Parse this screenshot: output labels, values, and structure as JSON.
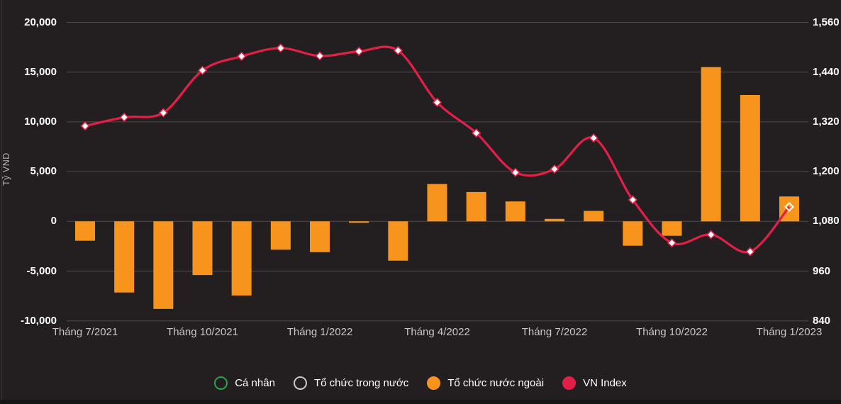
{
  "axes": {
    "y_left_title": "Tỷ VND",
    "left_ticks": [
      "20,000",
      "15,000",
      "10,000",
      "5,000",
      "0",
      "-5,000",
      "-10,000"
    ],
    "right_ticks": [
      "1,560",
      "1,440",
      "1,320",
      "1,200",
      "1,080",
      "960",
      "840"
    ],
    "x_ticks": [
      "Tháng 7/2021",
      "Tháng 10/2021",
      "Tháng 1/2022",
      "Tháng 4/2022",
      "Tháng 7/2022",
      "Tháng 10/2022",
      "Tháng 1/2023"
    ]
  },
  "legend": [
    {
      "label": "Cá nhân",
      "slug": "ca-nhan",
      "color": "#2fa14a",
      "filled": false
    },
    {
      "label": "Tổ chức trong nước",
      "slug": "to-chuc-trong-nuoc",
      "color": "#c9c9c9",
      "filled": false
    },
    {
      "label": "Tổ chức nước ngoài",
      "slug": "to-chuc-nuoc-ngoai",
      "color": "#f7941e",
      "filled": true
    },
    {
      "label": "VN Index",
      "slug": "vn-index",
      "color": "#e41f47",
      "filled": true
    }
  ],
  "colors": {
    "background": "#231f20",
    "gridline": "#4f4c4d",
    "bar_orange": "#f7941e",
    "line_red": "#e41f47",
    "marker_fill": "#ffffff",
    "axis_text": "#ffffff",
    "x_axis_text": "#c8c6c7"
  },
  "chart_data": {
    "type": "combo",
    "title": "",
    "grid": "horizontal",
    "legend_position": "bottom",
    "categories": [
      "Tháng 7/2021",
      "Tháng 8/2021",
      "Tháng 9/2021",
      "Tháng 10/2021",
      "Tháng 11/2021",
      "Tháng 12/2021",
      "Tháng 1/2022",
      "Tháng 2/2022",
      "Tháng 3/2022",
      "Tháng 4/2022",
      "Tháng 5/2022",
      "Tháng 6/2022",
      "Tháng 7/2022",
      "Tháng 8/2022",
      "Tháng 9/2022",
      "Tháng 10/2022",
      "Tháng 11/2022",
      "Tháng 12/2022",
      "Tháng 1/2023"
    ],
    "left_axis": {
      "label": "Tỷ VND",
      "min": -10000,
      "max": 20000,
      "tick_interval": 5000
    },
    "right_axis": {
      "label": "VN Index",
      "min": 840,
      "max": 1560,
      "tick_interval": 120
    },
    "series": [
      {
        "name": "Cá nhân",
        "type": "column",
        "axis": "left",
        "color": "#2fa14a",
        "visible": false,
        "values": []
      },
      {
        "name": "Tổ chức trong nước",
        "type": "column",
        "axis": "left",
        "color": "#c9c9c9",
        "visible": false,
        "values": []
      },
      {
        "name": "Tổ chức nước ngoài",
        "type": "column",
        "axis": "left",
        "color": "#f7941e",
        "visible": true,
        "values": [
          -1950,
          -7150,
          -8800,
          -5400,
          -7450,
          -2850,
          -3100,
          -150,
          -3950,
          3750,
          2950,
          2000,
          250,
          1050,
          -2450,
          -1450,
          15500,
          12700,
          2500
        ]
      },
      {
        "name": "VN Index",
        "type": "spline",
        "axis": "right",
        "color": "#e41f47",
        "visible": true,
        "values": [
          1310,
          1331,
          1342,
          1444,
          1478,
          1498,
          1479,
          1490,
          1492,
          1367,
          1293,
          1198,
          1206,
          1281,
          1132,
          1028,
          1048,
          1007,
          1115
        ]
      }
    ]
  }
}
